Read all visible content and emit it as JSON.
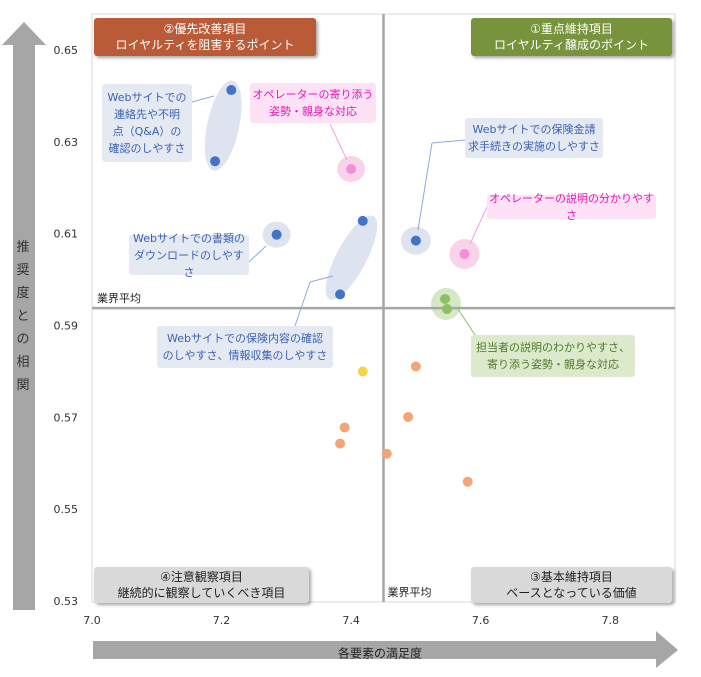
{
  "chart_data": {
    "type": "scatter",
    "x_axis": {
      "label": "各要素の満足度",
      "min": 7.0,
      "max": 7.9,
      "ticks": [
        "7.0",
        "7.2",
        "7.4",
        "7.6",
        "7.8"
      ],
      "tick_values": [
        7.0,
        7.2,
        7.4,
        7.6,
        7.8
      ]
    },
    "y_axis": {
      "label": "推奨度との相関",
      "min": 0.53,
      "max": 0.65,
      "ticks": [
        "0.65",
        "0.63",
        "0.61",
        "0.59",
        "0.57",
        "0.55",
        "0.53"
      ],
      "tick_values": [
        0.65,
        0.63,
        0.61,
        0.59,
        0.57,
        0.55,
        0.53
      ]
    },
    "reference_lines": {
      "x": 7.45,
      "x_label": "業界平均",
      "y": 0.594,
      "y_label": "業界平均"
    },
    "grid": {
      "vertical": false,
      "horizontal": false
    },
    "colors": {
      "blue": "#4472c4",
      "pink": "#f28fd7",
      "green": "#8cc063",
      "orange": "#f2a577",
      "yellow": "#f5d547",
      "axis": "#a6a6a6",
      "highlight_blue": "#dde4f0",
      "highlight_pink": "#f9d3ea",
      "highlight_green": "#d7e8c6"
    },
    "points": [
      {
        "x": 7.215,
        "y": 0.6415,
        "color": "blue"
      },
      {
        "x": 7.19,
        "y": 0.626,
        "color": "blue"
      },
      {
        "x": 7.285,
        "y": 0.61,
        "color": "blue"
      },
      {
        "x": 7.418,
        "y": 0.613,
        "color": "blue"
      },
      {
        "x": 7.383,
        "y": 0.597,
        "color": "blue"
      },
      {
        "x": 7.5,
        "y": 0.6087,
        "color": "blue"
      },
      {
        "x": 7.4,
        "y": 0.6243,
        "color": "pink"
      },
      {
        "x": 7.575,
        "y": 0.6058,
        "color": "pink"
      },
      {
        "x": 7.545,
        "y": 0.596,
        "color": "green"
      },
      {
        "x": 7.548,
        "y": 0.5938,
        "color": "green"
      },
      {
        "x": 7.418,
        "y": 0.5802,
        "color": "yellow"
      },
      {
        "x": 7.5,
        "y": 0.5813,
        "color": "orange"
      },
      {
        "x": 7.39,
        "y": 0.568,
        "color": "orange"
      },
      {
        "x": 7.383,
        "y": 0.5645,
        "color": "orange"
      },
      {
        "x": 7.488,
        "y": 0.5703,
        "color": "orange"
      },
      {
        "x": 7.455,
        "y": 0.5623,
        "color": "orange"
      },
      {
        "x": 7.58,
        "y": 0.5562,
        "color": "orange"
      }
    ],
    "quadrants": [
      {
        "line1": "②優先改善項目",
        "line2": "ロイヤルティを阻害するポイント"
      },
      {
        "line1": "①重点維持項目",
        "line2": "ロイヤルティ醸成のポイント"
      },
      {
        "line1": "④注意観察項目",
        "line2": "継続的に観察していくべき項目"
      },
      {
        "line1": "③基本維持項目",
        "line2": "ベースとなっている価値"
      }
    ],
    "annotations": [
      {
        "lines": [
          "Webサイトでの",
          "連絡先や不明",
          "点（Q&A）の",
          "確認のしやすさ"
        ]
      },
      {
        "lines": [
          "オペレーターの寄り添う",
          "姿勢・親身な対応"
        ]
      },
      {
        "lines": [
          "Webサイトでの保険金請",
          "求手続きの実施のしやすさ"
        ]
      },
      {
        "lines": [
          "オペレーターの説明の分かりやすさ"
        ]
      },
      {
        "lines": [
          "Webサイトでの書類の",
          "ダウンロードのしやすさ"
        ]
      },
      {
        "lines": [
          "Webサイトでの保険内容の確認",
          "のしやすさ、情報収集のしやすさ"
        ]
      },
      {
        "lines": [
          "担当者の説明のわかりやすさ、",
          "寄り添う姿勢・親身な対応"
        ]
      }
    ]
  }
}
